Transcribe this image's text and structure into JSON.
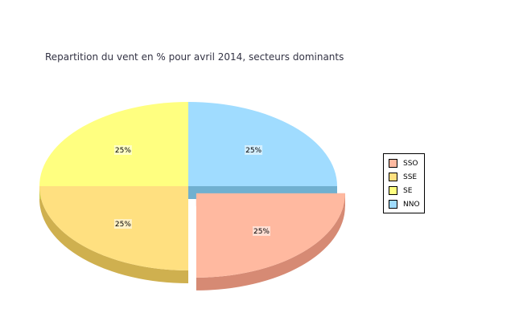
{
  "chart_data": {
    "type": "pie",
    "title": "Repartition du vent en % pour avril 2014, secteurs dominants",
    "slices": [
      {
        "name": "SSO",
        "value": 25,
        "label": "25%",
        "color": "#FFB9A0",
        "side": "#D68A74",
        "exploded": true
      },
      {
        "name": "SSE",
        "value": 25,
        "label": "25%",
        "color": "#FFE080",
        "side": "#CFB04F",
        "exploded": false
      },
      {
        "name": "SE",
        "value": 25,
        "label": "25%",
        "color": "#FFFF80",
        "side": "#CCCC50",
        "exploded": false
      },
      {
        "name": "NNO",
        "value": 25,
        "label": "25%",
        "color": "#A0DCFF",
        "side": "#70B0D0",
        "exploded": false
      }
    ],
    "legend": [
      "SSO",
      "SSE",
      "SE",
      "NNO"
    ],
    "legend_position": "right"
  }
}
